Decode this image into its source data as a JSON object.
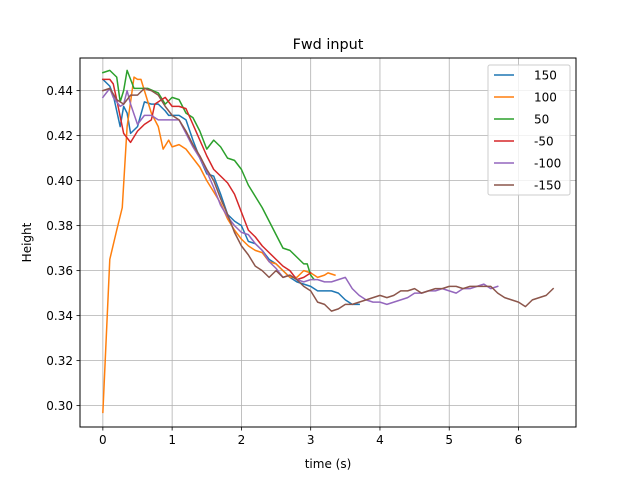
{
  "chart_data": {
    "type": "line",
    "title": "Fwd input",
    "xlabel": "time (s)",
    "ylabel": "Height",
    "xlim": [
      -0.33,
      6.83
    ],
    "ylim": [
      0.2905,
      0.4545
    ],
    "xticks": [
      0,
      1,
      2,
      3,
      4,
      5,
      6
    ],
    "yticks": [
      0.3,
      0.32,
      0.34,
      0.36,
      0.38,
      0.4,
      0.42,
      0.44
    ],
    "xtick_labels": [
      "0",
      "1",
      "2",
      "3",
      "4",
      "5",
      "6"
    ],
    "ytick_labels": [
      "0.30",
      "0.32",
      "0.34",
      "0.36",
      "0.38",
      "0.40",
      "0.42",
      "0.44"
    ],
    "grid": true,
    "legend_position": "top-right",
    "series": [
      {
        "name": "150",
        "color": "#1f77b4",
        "points": [
          [
            0,
            0.445
          ],
          [
            0.1,
            0.442
          ],
          [
            0.15,
            0.438
          ],
          [
            0.25,
            0.424
          ],
          [
            0.3,
            0.433
          ],
          [
            0.35,
            0.43
          ],
          [
            0.4,
            0.421
          ],
          [
            0.5,
            0.424
          ],
          [
            0.6,
            0.435
          ],
          [
            0.7,
            0.434
          ],
          [
            0.8,
            0.434
          ],
          [
            0.9,
            0.431
          ],
          [
            0.95,
            0.429
          ],
          [
            1.0,
            0.429
          ],
          [
            1.1,
            0.429
          ],
          [
            1.2,
            0.427
          ],
          [
            1.3,
            0.418
          ],
          [
            1.4,
            0.41
          ],
          [
            1.5,
            0.403
          ],
          [
            1.6,
            0.402
          ],
          [
            1.7,
            0.394
          ],
          [
            1.8,
            0.385
          ],
          [
            1.9,
            0.382
          ],
          [
            2.0,
            0.38
          ],
          [
            2.1,
            0.373
          ],
          [
            2.2,
            0.372
          ],
          [
            2.3,
            0.369
          ],
          [
            2.4,
            0.365
          ],
          [
            2.5,
            0.363
          ],
          [
            2.6,
            0.36
          ],
          [
            2.7,
            0.357
          ],
          [
            2.8,
            0.355
          ],
          [
            2.9,
            0.354
          ],
          [
            3.0,
            0.353
          ],
          [
            3.1,
            0.351
          ],
          [
            3.2,
            0.351
          ],
          [
            3.3,
            0.351
          ],
          [
            3.4,
            0.35
          ],
          [
            3.5,
            0.347
          ],
          [
            3.6,
            0.345
          ],
          [
            3.7,
            0.345
          ]
        ]
      },
      {
        "name": "100",
        "color": "#ff7f0e",
        "points": [
          [
            0,
            0.297
          ],
          [
            0.1,
            0.365
          ],
          [
            0.2,
            0.378
          ],
          [
            0.28,
            0.388
          ],
          [
            0.35,
            0.424
          ],
          [
            0.45,
            0.446
          ],
          [
            0.5,
            0.445
          ],
          [
            0.55,
            0.445
          ],
          [
            0.6,
            0.44
          ],
          [
            0.7,
            0.43
          ],
          [
            0.8,
            0.424
          ],
          [
            0.87,
            0.414
          ],
          [
            0.95,
            0.418
          ],
          [
            1.0,
            0.415
          ],
          [
            1.1,
            0.416
          ],
          [
            1.2,
            0.414
          ],
          [
            1.3,
            0.41
          ],
          [
            1.4,
            0.406
          ],
          [
            1.5,
            0.4
          ],
          [
            1.6,
            0.395
          ],
          [
            1.7,
            0.39
          ],
          [
            1.8,
            0.383
          ],
          [
            1.9,
            0.378
          ],
          [
            2.0,
            0.374
          ],
          [
            2.1,
            0.371
          ],
          [
            2.2,
            0.369
          ],
          [
            2.3,
            0.368
          ],
          [
            2.4,
            0.364
          ],
          [
            2.5,
            0.363
          ],
          [
            2.6,
            0.36
          ],
          [
            2.7,
            0.357
          ],
          [
            2.8,
            0.357
          ],
          [
            2.9,
            0.36
          ],
          [
            3.0,
            0.359
          ],
          [
            3.1,
            0.357
          ],
          [
            3.2,
            0.358
          ],
          [
            3.25,
            0.359
          ],
          [
            3.35,
            0.358
          ]
        ]
      },
      {
        "name": "50",
        "color": "#2ca02c",
        "points": [
          [
            0,
            0.448
          ],
          [
            0.1,
            0.449
          ],
          [
            0.2,
            0.446
          ],
          [
            0.25,
            0.435
          ],
          [
            0.3,
            0.44
          ],
          [
            0.35,
            0.449
          ],
          [
            0.45,
            0.441
          ],
          [
            0.55,
            0.441
          ],
          [
            0.65,
            0.441
          ],
          [
            0.8,
            0.439
          ],
          [
            0.9,
            0.434
          ],
          [
            1.0,
            0.437
          ],
          [
            1.1,
            0.436
          ],
          [
            1.2,
            0.43
          ],
          [
            1.3,
            0.428
          ],
          [
            1.4,
            0.422
          ],
          [
            1.5,
            0.414
          ],
          [
            1.6,
            0.418
          ],
          [
            1.7,
            0.415
          ],
          [
            1.8,
            0.41
          ],
          [
            1.9,
            0.409
          ],
          [
            2.0,
            0.405
          ],
          [
            2.1,
            0.398
          ],
          [
            2.2,
            0.393
          ],
          [
            2.3,
            0.388
          ],
          [
            2.4,
            0.382
          ],
          [
            2.5,
            0.376
          ],
          [
            2.6,
            0.37
          ],
          [
            2.7,
            0.369
          ],
          [
            2.8,
            0.366
          ],
          [
            2.9,
            0.363
          ],
          [
            2.95,
            0.363
          ],
          [
            3.0,
            0.358
          ],
          [
            3.05,
            0.356
          ]
        ]
      },
      {
        "name": "-50",
        "color": "#d62728",
        "points": [
          [
            0,
            0.445
          ],
          [
            0.1,
            0.445
          ],
          [
            0.15,
            0.443
          ],
          [
            0.2,
            0.436
          ],
          [
            0.3,
            0.421
          ],
          [
            0.4,
            0.417
          ],
          [
            0.5,
            0.422
          ],
          [
            0.6,
            0.425
          ],
          [
            0.7,
            0.427
          ],
          [
            0.75,
            0.434
          ],
          [
            0.8,
            0.435
          ],
          [
            0.9,
            0.437
          ],
          [
            1.0,
            0.433
          ],
          [
            1.1,
            0.433
          ],
          [
            1.2,
            0.432
          ],
          [
            1.3,
            0.425
          ],
          [
            1.4,
            0.418
          ],
          [
            1.5,
            0.411
          ],
          [
            1.6,
            0.405
          ],
          [
            1.7,
            0.402
          ],
          [
            1.8,
            0.399
          ],
          [
            1.9,
            0.394
          ],
          [
            2.0,
            0.386
          ],
          [
            2.1,
            0.378
          ],
          [
            2.2,
            0.375
          ],
          [
            2.3,
            0.371
          ],
          [
            2.4,
            0.368
          ],
          [
            2.5,
            0.365
          ],
          [
            2.6,
            0.362
          ],
          [
            2.7,
            0.36
          ],
          [
            2.8,
            0.356
          ],
          [
            2.9,
            0.357
          ],
          [
            3.0,
            0.359
          ]
        ]
      },
      {
        "name": "-100",
        "color": "#9467bd",
        "points": [
          [
            0,
            0.437
          ],
          [
            0.1,
            0.441
          ],
          [
            0.15,
            0.437
          ],
          [
            0.25,
            0.433
          ],
          [
            0.3,
            0.434
          ],
          [
            0.35,
            0.44
          ],
          [
            0.4,
            0.434
          ],
          [
            0.5,
            0.425
          ],
          [
            0.6,
            0.429
          ],
          [
            0.7,
            0.429
          ],
          [
            0.8,
            0.427
          ],
          [
            0.9,
            0.427
          ],
          [
            1.0,
            0.427
          ],
          [
            1.1,
            0.427
          ],
          [
            1.2,
            0.421
          ],
          [
            1.3,
            0.415
          ],
          [
            1.4,
            0.41
          ],
          [
            1.5,
            0.404
          ],
          [
            1.6,
            0.397
          ],
          [
            1.7,
            0.389
          ],
          [
            1.8,
            0.384
          ],
          [
            1.9,
            0.38
          ],
          [
            2.0,
            0.377
          ],
          [
            2.1,
            0.376
          ],
          [
            2.2,
            0.372
          ],
          [
            2.3,
            0.369
          ],
          [
            2.4,
            0.364
          ],
          [
            2.5,
            0.361
          ],
          [
            2.6,
            0.357
          ],
          [
            2.7,
            0.358
          ],
          [
            2.8,
            0.356
          ],
          [
            2.9,
            0.355
          ],
          [
            3.0,
            0.356
          ],
          [
            3.1,
            0.356
          ],
          [
            3.2,
            0.355
          ],
          [
            3.3,
            0.355
          ],
          [
            3.4,
            0.356
          ],
          [
            3.5,
            0.357
          ],
          [
            3.6,
            0.352
          ],
          [
            3.7,
            0.349
          ],
          [
            3.8,
            0.347
          ],
          [
            3.9,
            0.346
          ],
          [
            4.0,
            0.346
          ],
          [
            4.1,
            0.345
          ],
          [
            4.2,
            0.346
          ],
          [
            4.3,
            0.347
          ],
          [
            4.4,
            0.348
          ],
          [
            4.5,
            0.35
          ],
          [
            4.6,
            0.35
          ],
          [
            4.7,
            0.351
          ],
          [
            4.8,
            0.351
          ],
          [
            4.9,
            0.352
          ],
          [
            5.0,
            0.351
          ],
          [
            5.1,
            0.35
          ],
          [
            5.2,
            0.352
          ],
          [
            5.3,
            0.352
          ],
          [
            5.4,
            0.353
          ],
          [
            5.5,
            0.354
          ],
          [
            5.6,
            0.352
          ],
          [
            5.7,
            0.353
          ]
        ]
      },
      {
        "name": "-150",
        "color": "#8c564b",
        "points": [
          [
            0,
            0.44
          ],
          [
            0.1,
            0.441
          ],
          [
            0.2,
            0.436
          ],
          [
            0.3,
            0.434
          ],
          [
            0.4,
            0.438
          ],
          [
            0.5,
            0.438
          ],
          [
            0.6,
            0.441
          ],
          [
            0.7,
            0.44
          ],
          [
            0.8,
            0.438
          ],
          [
            0.9,
            0.433
          ],
          [
            1.0,
            0.429
          ],
          [
            1.1,
            0.427
          ],
          [
            1.2,
            0.422
          ],
          [
            1.3,
            0.416
          ],
          [
            1.4,
            0.411
          ],
          [
            1.5,
            0.405
          ],
          [
            1.6,
            0.4
          ],
          [
            1.7,
            0.392
          ],
          [
            1.8,
            0.385
          ],
          [
            1.9,
            0.377
          ],
          [
            2.0,
            0.371
          ],
          [
            2.1,
            0.367
          ],
          [
            2.2,
            0.362
          ],
          [
            2.3,
            0.36
          ],
          [
            2.4,
            0.357
          ],
          [
            2.5,
            0.36
          ],
          [
            2.6,
            0.357
          ],
          [
            2.7,
            0.358
          ],
          [
            2.8,
            0.356
          ],
          [
            2.9,
            0.353
          ],
          [
            3.0,
            0.351
          ],
          [
            3.1,
            0.346
          ],
          [
            3.2,
            0.345
          ],
          [
            3.3,
            0.342
          ],
          [
            3.4,
            0.343
          ],
          [
            3.5,
            0.345
          ],
          [
            3.6,
            0.345
          ],
          [
            3.7,
            0.346
          ],
          [
            3.8,
            0.347
          ],
          [
            3.9,
            0.348
          ],
          [
            4.0,
            0.349
          ],
          [
            4.1,
            0.348
          ],
          [
            4.2,
            0.349
          ],
          [
            4.3,
            0.351
          ],
          [
            4.4,
            0.351
          ],
          [
            4.5,
            0.352
          ],
          [
            4.6,
            0.35
          ],
          [
            4.7,
            0.351
          ],
          [
            4.8,
            0.352
          ],
          [
            4.9,
            0.352
          ],
          [
            5.0,
            0.353
          ],
          [
            5.1,
            0.353
          ],
          [
            5.2,
            0.352
          ],
          [
            5.3,
            0.353
          ],
          [
            5.4,
            0.353
          ],
          [
            5.5,
            0.353
          ],
          [
            5.6,
            0.353
          ],
          [
            5.7,
            0.35
          ],
          [
            5.8,
            0.348
          ],
          [
            5.9,
            0.347
          ],
          [
            6.0,
            0.346
          ],
          [
            6.1,
            0.344
          ],
          [
            6.2,
            0.347
          ],
          [
            6.3,
            0.348
          ],
          [
            6.4,
            0.349
          ],
          [
            6.5,
            0.352
          ]
        ]
      }
    ]
  }
}
